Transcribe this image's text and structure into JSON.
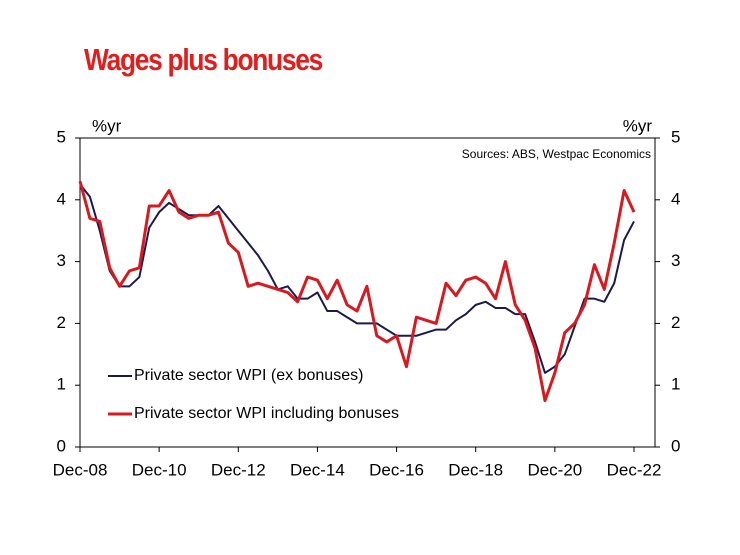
{
  "chart_data": {
    "type": "line",
    "title": "Wages plus bonuses",
    "y_label": "%yr",
    "y2_label": "%yr",
    "annotation": "Sources: ABS, Westpac Economics",
    "categories": [
      "Dec-08",
      null,
      null,
      null,
      null,
      null,
      null,
      null,
      "Dec-10",
      null,
      null,
      null,
      null,
      null,
      null,
      null,
      "Dec-12",
      null,
      null,
      null,
      null,
      null,
      null,
      null,
      "Dec-14",
      null,
      null,
      null,
      null,
      null,
      null,
      null,
      "Dec-16",
      null,
      null,
      null,
      null,
      null,
      null,
      null,
      "Dec-18",
      null,
      null,
      null,
      null,
      null,
      null,
      null,
      "Dec-20",
      null,
      null,
      null,
      null,
      null,
      null,
      null,
      "Dec-22"
    ],
    "series": [
      {
        "name": "Private sector WPI (ex bonuses)",
        "color": "#1a1a4e",
        "values": [
          4.25,
          4.05,
          3.5,
          2.85,
          2.6,
          2.6,
          2.75,
          3.55,
          3.8,
          3.95,
          3.85,
          3.75,
          3.75,
          3.75,
          3.9,
          3.7,
          3.5,
          3.3,
          3.1,
          2.85,
          2.55,
          2.6,
          2.4,
          2.4,
          2.5,
          2.2,
          2.2,
          2.1,
          2.0,
          2.0,
          2.0,
          1.9,
          1.8,
          1.8,
          1.8,
          1.85,
          1.9,
          1.9,
          2.05,
          2.15,
          2.3,
          2.35,
          2.25,
          2.25,
          2.15,
          2.15,
          1.7,
          1.2,
          1.3,
          1.5,
          1.95,
          2.4,
          2.4,
          2.35,
          2.65,
          3.35,
          3.65
        ]
      },
      {
        "name": "Private sector WPI including bonuses",
        "color": "#d71920",
        "values": [
          4.3,
          3.7,
          3.65,
          2.9,
          2.6,
          2.85,
          2.9,
          3.9,
          3.9,
          4.15,
          3.8,
          3.7,
          3.75,
          3.75,
          3.8,
          3.3,
          3.15,
          2.6,
          2.65,
          2.6,
          2.55,
          2.5,
          2.35,
          2.75,
          2.7,
          2.4,
          2.7,
          2.3,
          2.2,
          2.6,
          1.8,
          1.7,
          1.8,
          1.3,
          2.1,
          2.05,
          2.0,
          2.65,
          2.45,
          2.7,
          2.75,
          2.65,
          2.4,
          3.0,
          2.3,
          2.05,
          1.6,
          0.75,
          1.2,
          1.85,
          2.0,
          2.3,
          2.95,
          2.55,
          3.3,
          4.15,
          3.8
        ]
      }
    ],
    "ylim": [
      0,
      5
    ],
    "yticks": [
      0,
      1,
      2,
      3,
      4,
      5
    ],
    "y2lim": [
      0,
      5
    ],
    "y2ticks": [
      0,
      1,
      2,
      3,
      4,
      5
    ],
    "grid": false,
    "legend": "lower left"
  }
}
